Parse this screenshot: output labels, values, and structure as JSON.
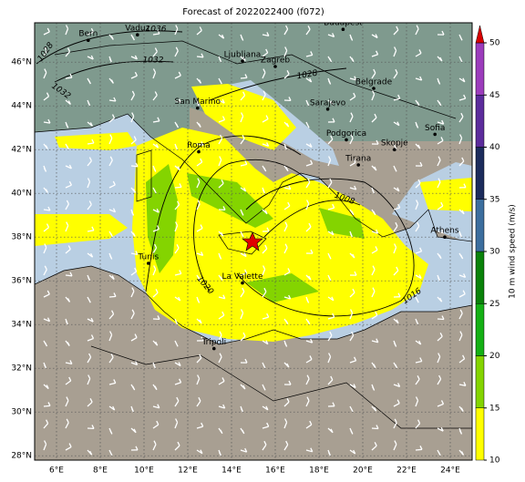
{
  "title": "Forecast of 2022022400 (f072)",
  "map": {
    "lon_range": [
      5,
      25
    ],
    "lat_range": [
      27.8,
      47.8
    ],
    "lon_ticks": [
      {
        "value": 6,
        "label": "6°E"
      },
      {
        "value": 8,
        "label": "8°E"
      },
      {
        "value": 10,
        "label": "10°E"
      },
      {
        "value": 12,
        "label": "12°E"
      },
      {
        "value": 14,
        "label": "14°E"
      },
      {
        "value": 16,
        "label": "16°E"
      },
      {
        "value": 18,
        "label": "18°E"
      },
      {
        "value": 20,
        "label": "20°E"
      },
      {
        "value": 22,
        "label": "22°E"
      },
      {
        "value": 24,
        "label": "24°E"
      }
    ],
    "lat_ticks": [
      {
        "value": 28,
        "label": "28°N"
      },
      {
        "value": 30,
        "label": "30°N"
      },
      {
        "value": 32,
        "label": "32°N"
      },
      {
        "value": 34,
        "label": "34°N"
      },
      {
        "value": 36,
        "label": "36°N"
      },
      {
        "value": 38,
        "label": "38°N"
      },
      {
        "value": 40,
        "label": "40°N"
      },
      {
        "value": 42,
        "label": "42°N"
      },
      {
        "value": 44,
        "label": "44°N"
      },
      {
        "value": 46,
        "label": "46°N"
      }
    ],
    "cities": [
      {
        "name": "Bern",
        "lon": 7.45,
        "lat": 47.0
      },
      {
        "name": "Vaduz",
        "lon": 9.7,
        "lat": 47.25
      },
      {
        "name": "Budapest",
        "lon": 19.1,
        "lat": 47.5
      },
      {
        "name": "Ljubljana",
        "lon": 14.5,
        "lat": 46.05
      },
      {
        "name": "Zagreb",
        "lon": 16.0,
        "lat": 45.8
      },
      {
        "name": "Belgrade",
        "lon": 20.5,
        "lat": 44.8
      },
      {
        "name": "San Marino",
        "lon": 12.45,
        "lat": 43.9
      },
      {
        "name": "Sarajevo",
        "lon": 18.4,
        "lat": 43.85
      },
      {
        "name": "Sofia",
        "lon": 23.3,
        "lat": 42.7
      },
      {
        "name": "Podgorica",
        "lon": 19.25,
        "lat": 42.45
      },
      {
        "name": "Skopje",
        "lon": 21.45,
        "lat": 42.0
      },
      {
        "name": "Roma",
        "lon": 12.5,
        "lat": 41.9
      },
      {
        "name": "Tirana",
        "lon": 19.8,
        "lat": 41.3
      },
      {
        "name": "Athens",
        "lon": 23.75,
        "lat": 38.0
      },
      {
        "name": "Tunis",
        "lon": 10.2,
        "lat": 36.8
      },
      {
        "name": "La Valette",
        "lon": 14.5,
        "lat": 35.9
      },
      {
        "name": "Tripoli",
        "lon": 13.2,
        "lat": 32.9
      }
    ],
    "isobar_labels": [
      "1028",
      "1036",
      "1032",
      "1032",
      "1028",
      "1020",
      "1016",
      "1008"
    ]
  },
  "colorbar": {
    "label": "10 m wind speed (m/s)",
    "levels": [
      10,
      15,
      20,
      25,
      30,
      35,
      40,
      45,
      50
    ],
    "colors": [
      "#ffff00",
      "#84d400",
      "#14b014",
      "#0a820a",
      "#3c6e9e",
      "#1c2c5c",
      "#5c2c9c",
      "#9c3cbc"
    ],
    "extend_color": "#d80000"
  }
}
